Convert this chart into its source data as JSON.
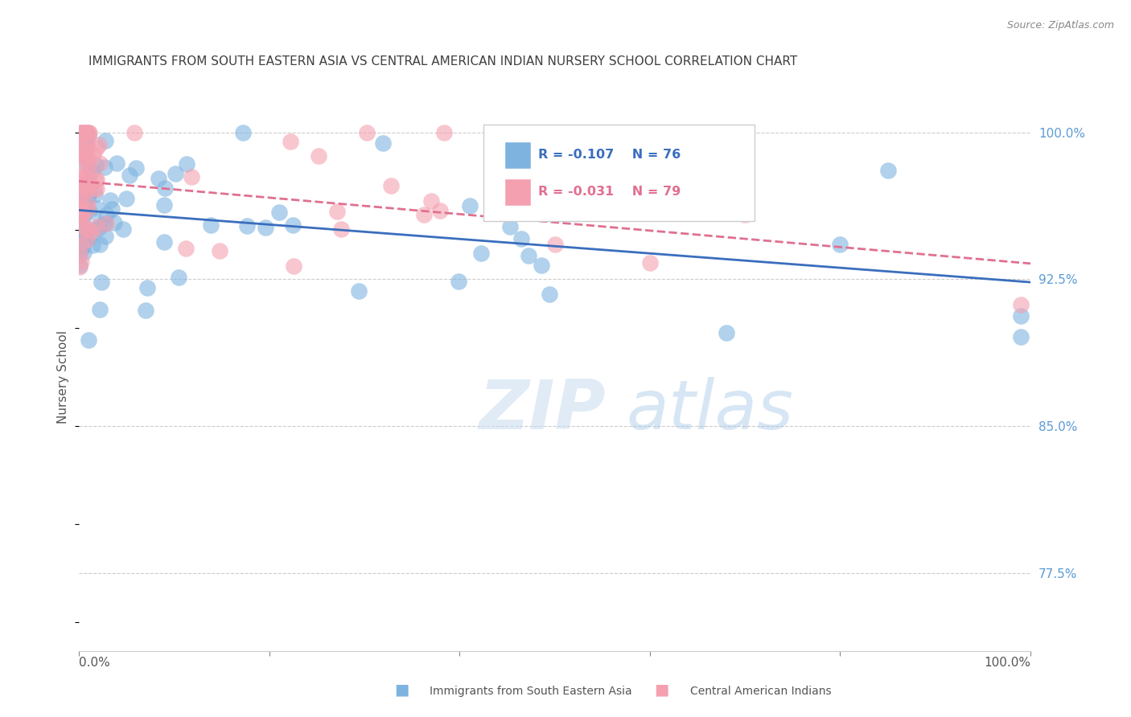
{
  "title": "IMMIGRANTS FROM SOUTH EASTERN ASIA VS CENTRAL AMERICAN INDIAN NURSERY SCHOOL CORRELATION CHART",
  "source": "Source: ZipAtlas.com",
  "ylabel": "Nursery School",
  "watermark_zip": "ZIP",
  "watermark_atlas": "atlas",
  "legend_blue_r": "R = -0.107",
  "legend_blue_n": "N = 76",
  "legend_pink_r": "R = -0.031",
  "legend_pink_n": "N = 79",
  "legend_blue_label": "Immigrants from South Eastern Asia",
  "legend_pink_label": "Central American Indians",
  "blue_color": "#7EB3E0",
  "pink_color": "#F4A0B0",
  "blue_line_color": "#3A6EBE",
  "pink_line_color": "#E07090",
  "right_axis_color": "#5B9BD5",
  "title_color": "#404040",
  "y_tick_labels": [
    "100.0%",
    "92.5%",
    "85.0%",
    "77.5%"
  ],
  "y_tick_values": [
    1.0,
    0.925,
    0.85,
    0.775
  ],
  "xlim": [
    0.0,
    1.0
  ],
  "ylim": [
    0.735,
    1.015
  ]
}
